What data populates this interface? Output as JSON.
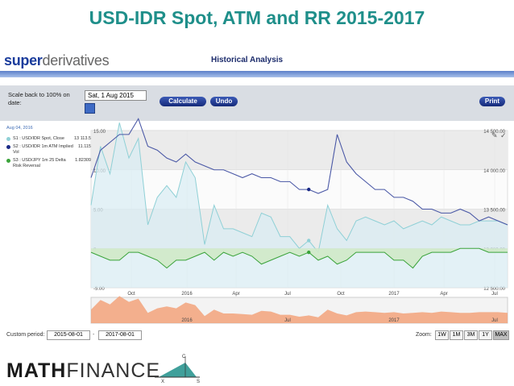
{
  "slide": {
    "title": "USD-IDR  Spot, ATM and RR 2015-2017"
  },
  "app": {
    "logo_bold": "super",
    "logo_light": "derivatives",
    "page_title": "Historical Analysis",
    "scale_label": "Scale back to 100% on date:",
    "scale_date": "Sat, 1 Aug 2015",
    "calculate_label": "Calculate",
    "undo_label": "Undo",
    "print_label": "Print"
  },
  "legend": {
    "date": "Aug 04, 2016",
    "items": [
      {
        "label": "S1 : USD/IDR Spot, Close",
        "value": "13 113.5",
        "color": "#8fd0d6"
      },
      {
        "label": "S2 : USD/IDR 1m ATM Implied Vol",
        "value": "11.115",
        "color": "#1b2a86"
      },
      {
        "label": "S3 : USD/JPY 1m 25 Delta Risk Reversal",
        "value": "1.82309",
        "color": "#3aa33a"
      }
    ]
  },
  "chart_data": {
    "type": "line",
    "x_ticks": [
      "Oct",
      "2016",
      "Apr",
      "Jul",
      "Oct",
      "2017",
      "Apr",
      "Jul"
    ],
    "left_ticks": [
      "15.00",
      "10.00",
      "5.00",
      "0",
      "-5.00"
    ],
    "right_ticks": [
      "14 500.00",
      "14 000.00",
      "13 500.00",
      "13 000.00",
      "12 500.00"
    ],
    "navigator_ticks": [
      "2016",
      "Jul",
      "2017",
      "Jul"
    ],
    "ylim_left": [
      -5,
      15
    ],
    "ylim_right": [
      12500,
      14500
    ],
    "series": [
      {
        "name": "S1 : USD/IDR Spot, Close",
        "axis": "right",
        "values": [
          13550,
          14300,
          13950,
          14600,
          14150,
          14400,
          13300,
          13650,
          13800,
          13650,
          14100,
          13900,
          13050,
          13550,
          13250,
          13250,
          13200,
          13150,
          13450,
          13400,
          13150,
          13150,
          13000,
          13100,
          12950,
          13550,
          13250,
          13100,
          13350,
          13400,
          13350,
          13300,
          13350,
          13250,
          13300,
          13350,
          13300,
          13400,
          13350,
          13300,
          13300,
          13350,
          13350,
          13350,
          13300
        ]
      },
      {
        "name": "S2 : USD/IDR 1m ATM Implied Vol",
        "axis": "left",
        "values": [
          9,
          12.5,
          13.5,
          14.5,
          14.5,
          16.5,
          13,
          12.5,
          11.5,
          11,
          12,
          11,
          10.5,
          10,
          10,
          9.5,
          9,
          9.5,
          9,
          9,
          8.5,
          8.5,
          7.5,
          7.5,
          7,
          7.5,
          14.5,
          11,
          9.5,
          8.5,
          7.5,
          7.5,
          6.5,
          6.5,
          6,
          5,
          5,
          4.5,
          4.5,
          5,
          4.5,
          3.5,
          4,
          3.5,
          3
        ]
      },
      {
        "name": "S3 : USD/JPY 1m 25 Delta Risk Reversal",
        "axis": "left",
        "values": [
          -0.5,
          -1,
          -1.5,
          -1.5,
          -0.5,
          -0.5,
          -1,
          -1.5,
          -2.5,
          -1.5,
          -1.5,
          -1,
          -0.5,
          -1.5,
          -0.5,
          -1,
          -0.5,
          -1,
          -2,
          -1.5,
          -1,
          -0.5,
          -1,
          -0.5,
          -1.5,
          -1,
          -2,
          -1.5,
          -0.5,
          -0.5,
          -0.5,
          -0.5,
          -1.5,
          -1.5,
          -2.5,
          -1,
          -0.5,
          -0.5,
          -0.5,
          0,
          0,
          0,
          -0.5,
          -0.5,
          -0.5
        ]
      }
    ]
  },
  "bottom": {
    "custom_period_label": "Custom period:",
    "start": "2015-08-01",
    "separator": "-",
    "end": "2017-08-01",
    "zoom_label": "Zoom:",
    "zoom": [
      "1W",
      "1M",
      "3M",
      "1Y",
      "MAX"
    ]
  },
  "footer": {
    "brand_bold": "MATH",
    "brand_light": "FINANCE",
    "logo_c": "C",
    "logo_x": "X",
    "logo_s": "S"
  }
}
